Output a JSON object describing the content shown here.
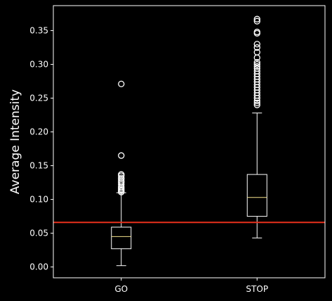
{
  "chart_data": {
    "type": "boxplot",
    "title": "",
    "xlabel": "",
    "ylabel": "Average Intensity",
    "categories": [
      "GO",
      "STOP"
    ],
    "ylim": [
      -0.016,
      0.387
    ],
    "yticks": [
      0.0,
      0.05,
      0.1,
      0.15,
      0.2,
      0.25,
      0.3,
      0.35
    ],
    "ytick_labels": [
      "0.00",
      "0.05",
      "0.10",
      "0.15",
      "0.20",
      "0.25",
      "0.30",
      "0.35"
    ],
    "grid": false,
    "legend": "none",
    "boxes": [
      {
        "name": "GO",
        "whisker_low": 0.002,
        "q1": 0.027,
        "median": 0.045,
        "q3": 0.059,
        "whisker_high": 0.11,
        "outliers": [
          0.111,
          0.113,
          0.115,
          0.117,
          0.119,
          0.122,
          0.125,
          0.127,
          0.13,
          0.132,
          0.135,
          0.137,
          0.165,
          0.271
        ]
      },
      {
        "name": "STOP",
        "whisker_low": 0.043,
        "q1": 0.075,
        "median": 0.103,
        "q3": 0.137,
        "whisker_high": 0.228,
        "outliers": [
          0.24,
          0.243,
          0.246,
          0.25,
          0.254,
          0.258,
          0.262,
          0.266,
          0.27,
          0.274,
          0.278,
          0.282,
          0.286,
          0.29,
          0.294,
          0.297,
          0.3,
          0.303,
          0.31,
          0.318,
          0.325,
          0.33,
          0.346,
          0.348,
          0.364,
          0.367
        ]
      }
    ],
    "reference_line": {
      "y": 0.066,
      "color": "#e8301c"
    },
    "colors": {
      "background": "#000000",
      "foreground": "#ffffff",
      "median": "#f5e28c",
      "reference": "#e8301c"
    }
  }
}
